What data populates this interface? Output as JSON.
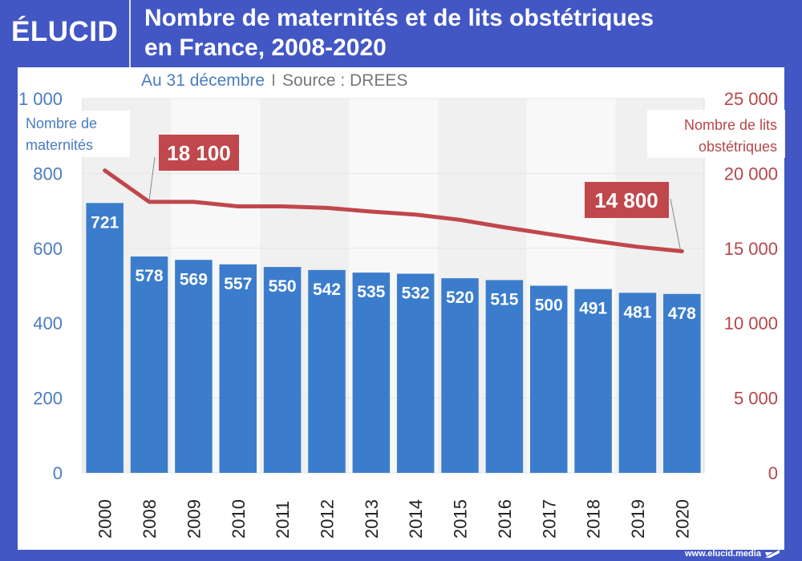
{
  "brand": {
    "logo": "ÉLUCID",
    "footer_url": "www.elucid.media"
  },
  "header": {
    "title_line1": "Nombre de maternités et de lits obstétriques",
    "title_line2": "en France, 2008-2020",
    "subtitle_date": "Au 31 décembre",
    "subtitle_separator": "I",
    "subtitle_source": "Source : DREES"
  },
  "colors": {
    "frame": "#4257c4",
    "bar": "#3b7dcc",
    "line": "#c0474b",
    "left_axis": "#4a7dbf",
    "right_axis": "#b5474b"
  },
  "chart_data": {
    "type": "bar+line",
    "title": "Nombre de maternités et de lits obstétriques en France, 2008-2020",
    "subtitle": "Au 31 décembre | Source : DREES",
    "categories": [
      "2000",
      "2008",
      "2009",
      "2010",
      "2011",
      "2012",
      "2013",
      "2014",
      "2015",
      "2016",
      "2017",
      "2018",
      "2019",
      "2020"
    ],
    "series": [
      {
        "name": "Nombre de maternités",
        "type": "bar",
        "axis": "left",
        "values": [
          721,
          578,
          569,
          557,
          550,
          542,
          535,
          532,
          520,
          515,
          500,
          491,
          481,
          478
        ]
      },
      {
        "name": "Nombre de lits obstétriques",
        "type": "line",
        "axis": "right",
        "values": [
          20200,
          18100,
          18100,
          17800,
          17800,
          17700,
          17450,
          17250,
          16900,
          16400,
          15950,
          15500,
          15100,
          14800
        ]
      }
    ],
    "left_axis": {
      "label": "Nombre de maternités",
      "range": [
        0,
        1000
      ],
      "ticks": [
        "0",
        "200",
        "400",
        "600",
        "800",
        "1 000"
      ],
      "tick_values": [
        0,
        200,
        400,
        600,
        800,
        1000
      ]
    },
    "right_axis": {
      "label": "Nombre de lits obstétriques",
      "range": [
        0,
        25000
      ],
      "ticks": [
        "0",
        "5 000",
        "10 000",
        "15 000",
        "20 000",
        "25 000"
      ],
      "tick_values": [
        0,
        5000,
        10000,
        15000,
        20000,
        25000
      ]
    },
    "annotations": [
      {
        "text": "18 100",
        "category": "2008",
        "series": "Nombre de lits obstétriques"
      },
      {
        "text": "14 800",
        "category": "2020",
        "series": "Nombre de lits obstétriques"
      }
    ],
    "grid": true,
    "legend": "axis-labels"
  }
}
